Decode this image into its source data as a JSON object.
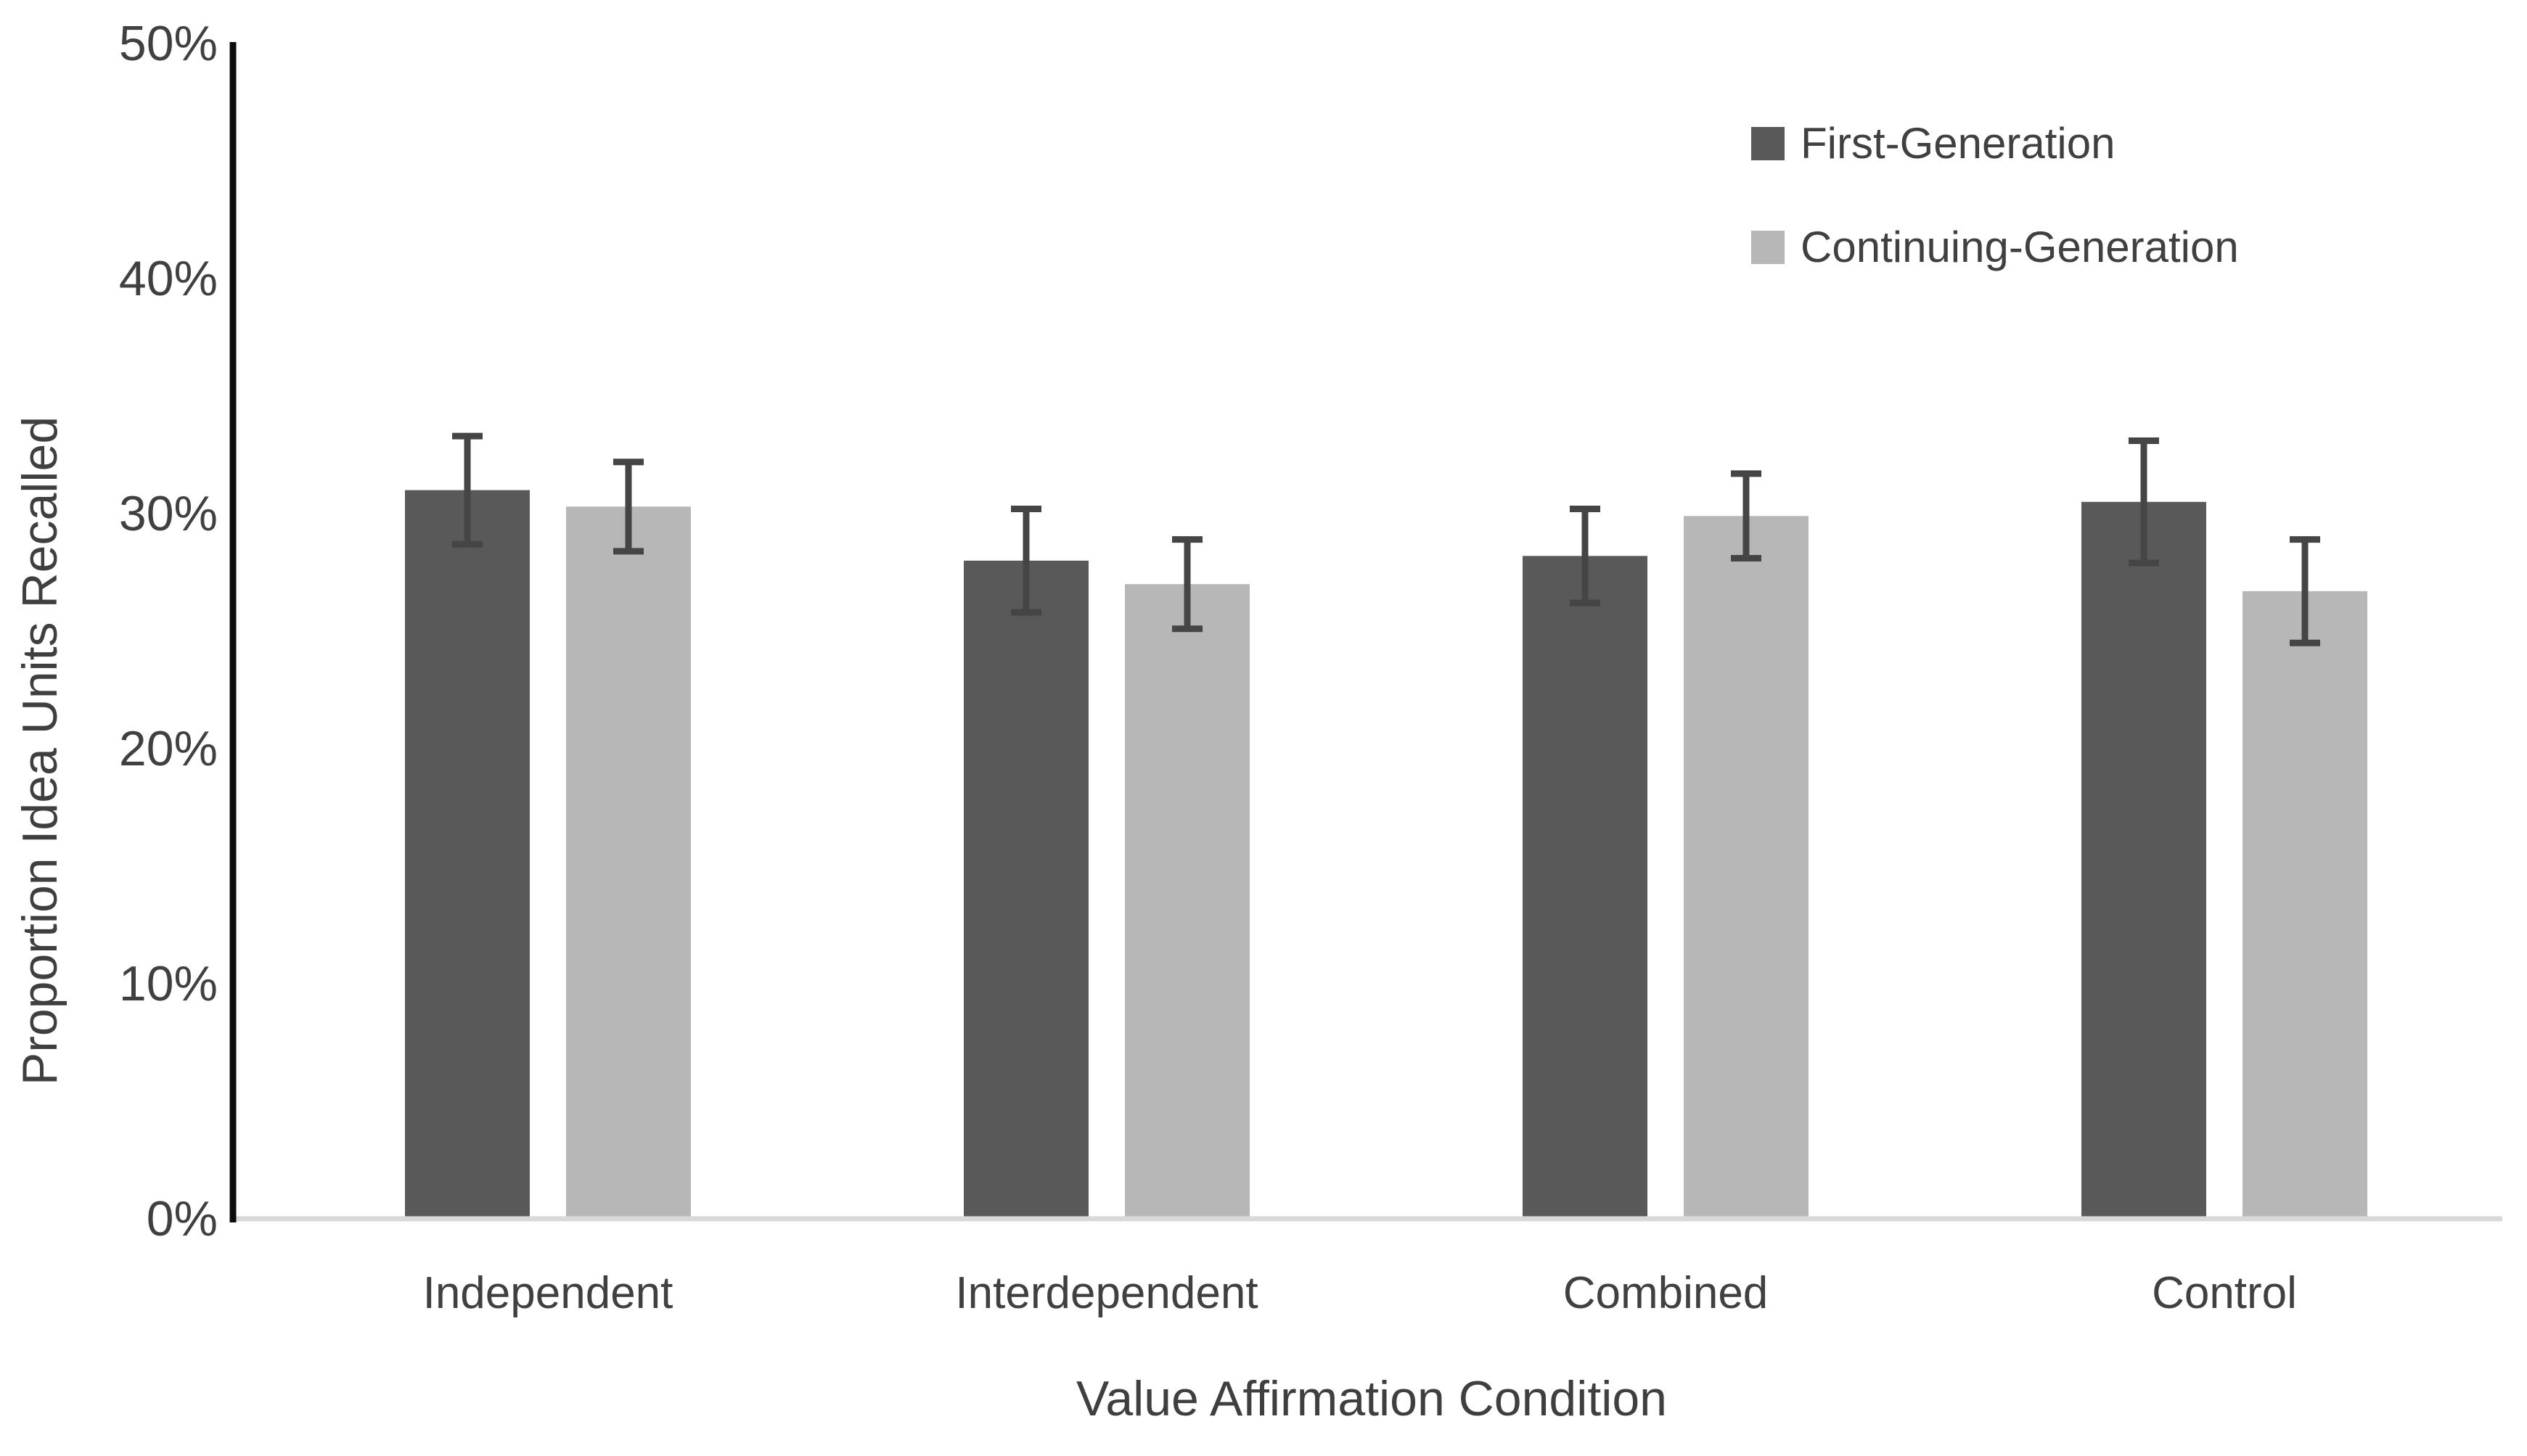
{
  "chart_data": {
    "type": "bar",
    "xlabel": "Value Affirmation Condition",
    "ylabel": "Proportion Idea Units Recalled",
    "categories": [
      "Independent",
      "Interdependent",
      "Combined",
      "Control"
    ],
    "series": [
      {
        "name": "First-Generation",
        "color": "#595959",
        "values": [
          31.0,
          28.0,
          28.2,
          30.5
        ],
        "errors": [
          2.3,
          2.2,
          2.0,
          2.6
        ]
      },
      {
        "name": "Continuing-Generation",
        "color": "#b7b7b7",
        "values": [
          30.3,
          27.0,
          29.9,
          26.7
        ],
        "errors": [
          1.9,
          1.9,
          1.8,
          2.2
        ]
      }
    ],
    "y_axis": {
      "min": 0,
      "max": 50,
      "step": 10,
      "tick_labels": [
        "0%",
        "10%",
        "20%",
        "30%",
        "40%",
        "50%"
      ]
    },
    "value_unit": "percent",
    "grid": false,
    "legend_position": "top-right",
    "error_bar_color": "#454545",
    "axis_line_color": "#0d0d0d",
    "baseline_color": "#d9d9d9",
    "text_color": "#404040"
  }
}
